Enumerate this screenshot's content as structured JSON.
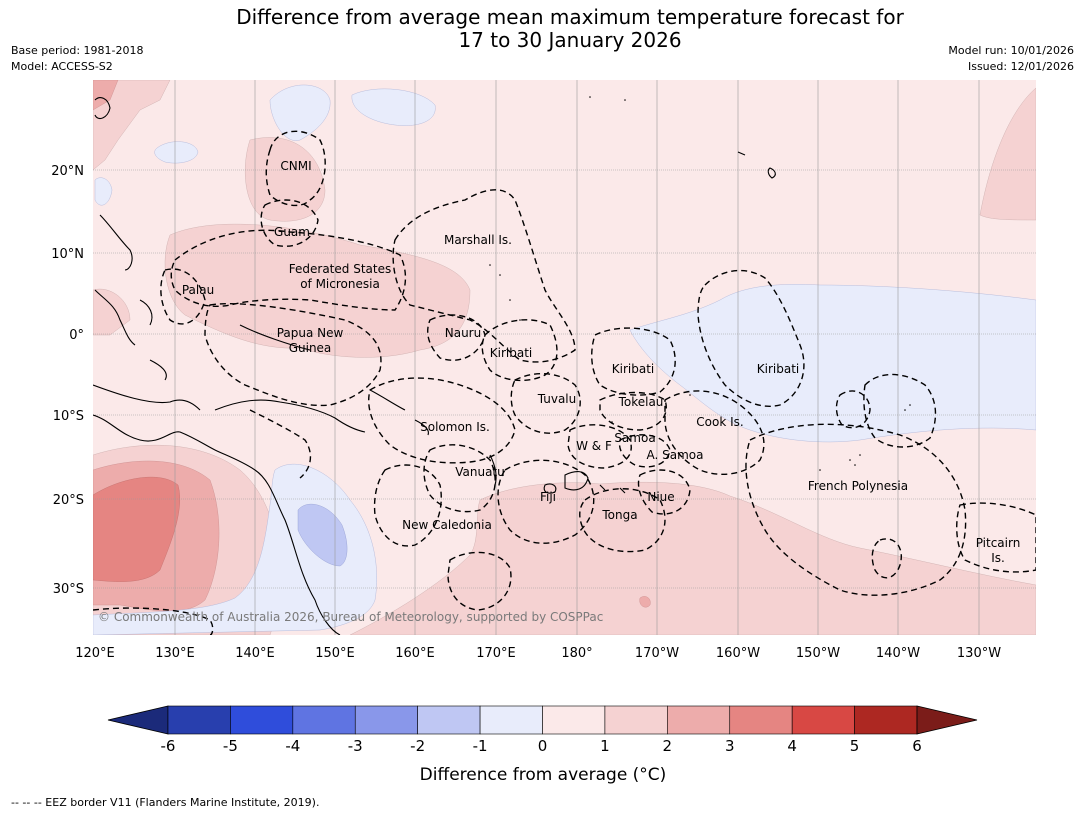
{
  "title": {
    "line1": "Difference from average mean maximum temperature forecast for",
    "line2": "17 to 30 January 2026"
  },
  "meta": {
    "base_period": "Base period: 1981-2018",
    "model": "Model: ACCESS-S2",
    "model_run": "Model run: 10/01/2026",
    "issued": "Issued: 12/01/2026"
  },
  "axes": {
    "lon_labels": [
      "120°E",
      "130°E",
      "140°E",
      "150°E",
      "160°E",
      "170°E",
      "180°",
      "170°W",
      "160°W",
      "150°W",
      "140°W",
      "130°W"
    ],
    "lat_labels": [
      "20°N",
      "10°N",
      "0°",
      "10°S",
      "20°S",
      "30°S"
    ]
  },
  "regions": {
    "cnmi": "CNMI",
    "guam": "Guam",
    "marshall": "Marshall Is.",
    "fsm1": "Federated States",
    "fsm2": "of Micronesia",
    "palau": "Palau",
    "png1": "Papua New",
    "png2": "Guinea",
    "nauru": "Nauru",
    "kiribati_w": "Kiribati",
    "kiribati_c": "Kiribati",
    "kiribati_e": "Kiribati",
    "tuvalu": "Tuvalu",
    "tokelau": "Tokelau",
    "solomon": "Solomon Is.",
    "cook": "Cook Is.",
    "samoa": "Samoa",
    "wf": "W & F",
    "asamoa": "A. Samoa",
    "vanuatu": "Vanuatu",
    "fiji": "Fiji",
    "niue": "Niue",
    "tonga": "Tonga",
    "newcal": "New Caledonia",
    "frenchpoly": "French Polynesia",
    "pitcairn1": "Pitcairn",
    "pitcairn2": "Is."
  },
  "copyright": "© Commonwealth of Australia 2026, Bureau of Meteorology, supported by COSPPac",
  "colorbar": {
    "tick_labels": [
      "-6",
      "-5",
      "-4",
      "-3",
      "-2",
      "-1",
      "0",
      "1",
      "2",
      "3",
      "4",
      "5",
      "6"
    ],
    "colors": [
      "#283fae",
      "#2f4ddb",
      "#5f74e2",
      "#8997ea",
      "#bfc7f3",
      "#e8ecfb",
      "#fbe9e9",
      "#f5d2d2",
      "#edacab",
      "#e58582",
      "#d84844",
      "#ad2822"
    ],
    "low_extend_color": "#1b2a7a",
    "high_extend_color": "#7b1c19",
    "label": "Difference from average (°C)"
  },
  "footer": "--  --  -- EEZ border V11 (Flanders Marine Institute, 2019)."
}
